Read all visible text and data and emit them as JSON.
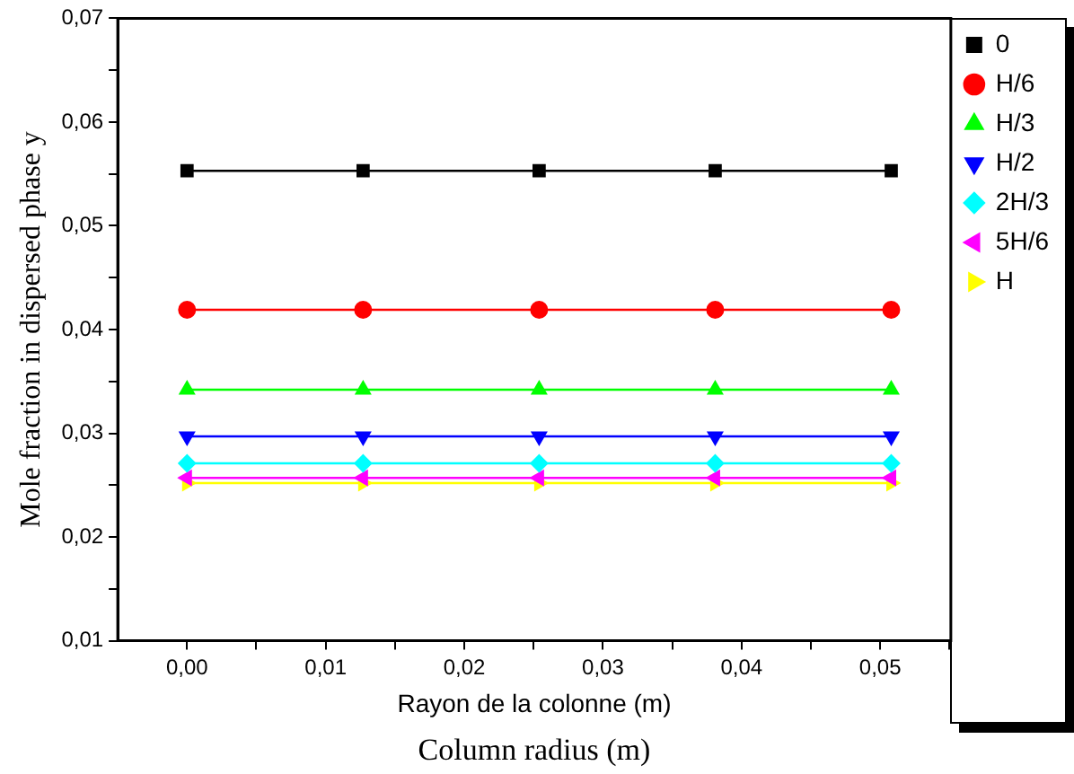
{
  "chart_data": {
    "type": "line",
    "xlabel": "Rayon de la colonne (m)",
    "ylabel": "Mole fraction in dispersed phase y",
    "annotations": [
      "Column radius (m)"
    ],
    "x": [
      0,
      0.0127,
      0.0254,
      0.0381,
      0.0508
    ],
    "xlim": [
      -0.005,
      0.0551
    ],
    "xticks": [
      {
        "value": 0,
        "label": "0,00"
      },
      {
        "value": 0.005,
        "label": null
      },
      {
        "value": 0.01,
        "label": "0,01"
      },
      {
        "value": 0.015,
        "label": null
      },
      {
        "value": 0.02,
        "label": "0,02"
      },
      {
        "value": 0.025,
        "label": null
      },
      {
        "value": 0.03,
        "label": "0,03"
      },
      {
        "value": 0.035,
        "label": null
      },
      {
        "value": 0.04,
        "label": "0,04"
      },
      {
        "value": 0.045,
        "label": null
      },
      {
        "value": 0.05,
        "label": "0,05"
      },
      {
        "value": 0.055,
        "label": null
      }
    ],
    "ylim": [
      0.01,
      0.07
    ],
    "yticks": [
      {
        "value": 0.01,
        "label": "0,01"
      },
      {
        "value": 0.015,
        "label": null
      },
      {
        "value": 0.02,
        "label": "0,02"
      },
      {
        "value": 0.025,
        "label": null
      },
      {
        "value": 0.03,
        "label": "0,03"
      },
      {
        "value": 0.035,
        "label": null
      },
      {
        "value": 0.04,
        "label": "0,04"
      },
      {
        "value": 0.045,
        "label": null
      },
      {
        "value": 0.05,
        "label": "0,05"
      },
      {
        "value": 0.055,
        "label": null
      },
      {
        "value": 0.06,
        "label": "0,06"
      },
      {
        "value": 0.065,
        "label": null
      },
      {
        "value": 0.07,
        "label": "0,07"
      }
    ],
    "grid": false,
    "legend": "top right",
    "line_style": "solid",
    "series": [
      {
        "name": "0",
        "color": "#000000",
        "marker": "square",
        "values": [
          0.0553,
          0.0553,
          0.0553,
          0.0553,
          0.0553
        ]
      },
      {
        "name": "H/6",
        "color": "#ff0000",
        "marker": "circle",
        "values": [
          0.0419,
          0.0419,
          0.0419,
          0.0419,
          0.0419
        ]
      },
      {
        "name": "H/3",
        "color": "#00ff00",
        "marker": "triangle",
        "values": [
          0.0342,
          0.0342,
          0.0342,
          0.0342,
          0.0342
        ]
      },
      {
        "name": "H/2",
        "color": "#0000ff",
        "marker": "triangle-down",
        "values": [
          0.0297,
          0.0297,
          0.0297,
          0.0297,
          0.0297
        ]
      },
      {
        "name": "2H/3",
        "color": "#00ffff",
        "marker": "diamond",
        "values": [
          0.0271,
          0.0271,
          0.0271,
          0.0271,
          0.0271
        ]
      },
      {
        "name": "5H/6",
        "color": "#ff00ff",
        "marker": "triangle-left",
        "values": [
          0.0257,
          0.0257,
          0.0257,
          0.0257,
          0.0257
        ]
      },
      {
        "name": "H",
        "color": "#ffff00",
        "marker": "triangle-right",
        "values": [
          0.0252,
          0.0252,
          0.0252,
          0.0252,
          0.0252
        ]
      }
    ]
  }
}
